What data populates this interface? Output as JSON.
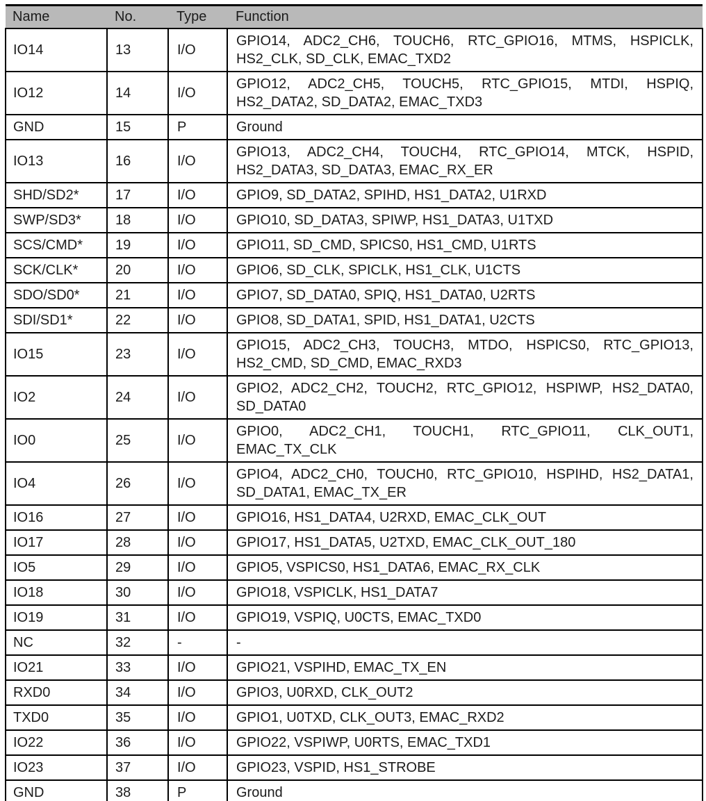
{
  "colors": {
    "header_background": "#b9b9b9",
    "border": "#000000",
    "text": "#1c1c1c",
    "page_background": "#ffffff"
  },
  "table": {
    "headers": [
      "Name",
      "No.",
      "Type",
      "Function"
    ],
    "rows": [
      {
        "name": "IO14",
        "no": "13",
        "type": "I/O",
        "function_lines": [
          "GPIO14, ADC2_CH6, TOUCH6, RTC_GPIO16, MTMS, HSPICLK,",
          "HS2_CLK, SD_CLK, EMAC_TXD2"
        ]
      },
      {
        "name": "IO12",
        "no": "14",
        "type": "I/O",
        "function_lines": [
          "GPIO12, ADC2_CH5, TOUCH5, RTC_GPIO15, MTDI, HSPIQ,",
          "HS2_DATA2, SD_DATA2, EMAC_TXD3"
        ]
      },
      {
        "name": "GND",
        "no": "15",
        "type": "P",
        "function_lines": [
          "Ground"
        ]
      },
      {
        "name": "IO13",
        "no": "16",
        "type": "I/O",
        "function_lines": [
          "GPIO13, ADC2_CH4, TOUCH4, RTC_GPIO14, MTCK, HSPID,",
          "HS2_DATA3, SD_DATA3, EMAC_RX_ER"
        ]
      },
      {
        "name": "SHD/SD2*",
        "no": "17",
        "type": "I/O",
        "function_lines": [
          "GPIO9, SD_DATA2, SPIHD, HS1_DATA2, U1RXD"
        ]
      },
      {
        "name": "SWP/SD3*",
        "no": "18",
        "type": "I/O",
        "function_lines": [
          "GPIO10, SD_DATA3, SPIWP, HS1_DATA3, U1TXD"
        ]
      },
      {
        "name": "SCS/CMD*",
        "no": "19",
        "type": "I/O",
        "function_lines": [
          "GPIO11, SD_CMD, SPICS0, HS1_CMD, U1RTS"
        ]
      },
      {
        "name": "SCK/CLK*",
        "no": "20",
        "type": "I/O",
        "function_lines": [
          "GPIO6, SD_CLK, SPICLK, HS1_CLK, U1CTS"
        ]
      },
      {
        "name": "SDO/SD0*",
        "no": "21",
        "type": "I/O",
        "function_lines": [
          "GPIO7, SD_DATA0, SPIQ, HS1_DATA0, U2RTS"
        ]
      },
      {
        "name": "SDI/SD1*",
        "no": "22",
        "type": "I/O",
        "function_lines": [
          "GPIO8, SD_DATA1, SPID, HS1_DATA1, U2CTS"
        ]
      },
      {
        "name": "IO15",
        "no": "23",
        "type": "I/O",
        "function_lines": [
          "GPIO15, ADC2_CH3, TOUCH3, MTDO, HSPICS0, RTC_GPIO13,",
          "HS2_CMD, SD_CMD, EMAC_RXD3"
        ]
      },
      {
        "name": "IO2",
        "no": "24",
        "type": "I/O",
        "function_lines": [
          "GPIO2, ADC2_CH2, TOUCH2, RTC_GPIO12, HSPIWP, HS2_DATA0,",
          "SD_DATA0"
        ]
      },
      {
        "name": "IO0",
        "no": "25",
        "type": "I/O",
        "function_lines": [
          "GPIO0, ADC2_CH1, TOUCH1, RTC_GPIO11, CLK_OUT1,",
          "EMAC_TX_CLK"
        ]
      },
      {
        "name": "IO4",
        "no": "26",
        "type": "I/O",
        "function_lines": [
          "GPIO4, ADC2_CH0, TOUCH0, RTC_GPIO10, HSPIHD, HS2_DATA1,",
          "SD_DATA1, EMAC_TX_ER"
        ]
      },
      {
        "name": "IO16",
        "no": "27",
        "type": "I/O",
        "function_lines": [
          "GPIO16, HS1_DATA4, U2RXD, EMAC_CLK_OUT"
        ]
      },
      {
        "name": "IO17",
        "no": "28",
        "type": "I/O",
        "function_lines": [
          "GPIO17, HS1_DATA5, U2TXD, EMAC_CLK_OUT_180"
        ]
      },
      {
        "name": "IO5",
        "no": "29",
        "type": "I/O",
        "function_lines": [
          "GPIO5, VSPICS0, HS1_DATA6, EMAC_RX_CLK"
        ]
      },
      {
        "name": "IO18",
        "no": "30",
        "type": "I/O",
        "function_lines": [
          "GPIO18, VSPICLK, HS1_DATA7"
        ]
      },
      {
        "name": "IO19",
        "no": "31",
        "type": "I/O",
        "function_lines": [
          "GPIO19, VSPIQ, U0CTS, EMAC_TXD0"
        ]
      },
      {
        "name": "NC",
        "no": "32",
        "type": "-",
        "function_lines": [
          "-"
        ]
      },
      {
        "name": "IO21",
        "no": "33",
        "type": "I/O",
        "function_lines": [
          "GPIO21, VSPIHD, EMAC_TX_EN"
        ]
      },
      {
        "name": "RXD0",
        "no": "34",
        "type": "I/O",
        "function_lines": [
          "GPIO3, U0RXD, CLK_OUT2"
        ]
      },
      {
        "name": "TXD0",
        "no": "35",
        "type": "I/O",
        "function_lines": [
          "GPIO1, U0TXD, CLK_OUT3, EMAC_RXD2"
        ]
      },
      {
        "name": "IO22",
        "no": "36",
        "type": "I/O",
        "function_lines": [
          "GPIO22, VSPIWP, U0RTS, EMAC_TXD1"
        ]
      },
      {
        "name": "IO23",
        "no": "37",
        "type": "I/O",
        "function_lines": [
          "GPIO23, VSPID, HS1_STROBE"
        ]
      },
      {
        "name": "GND",
        "no": "38",
        "type": "P",
        "function_lines": [
          "Ground"
        ]
      }
    ]
  }
}
